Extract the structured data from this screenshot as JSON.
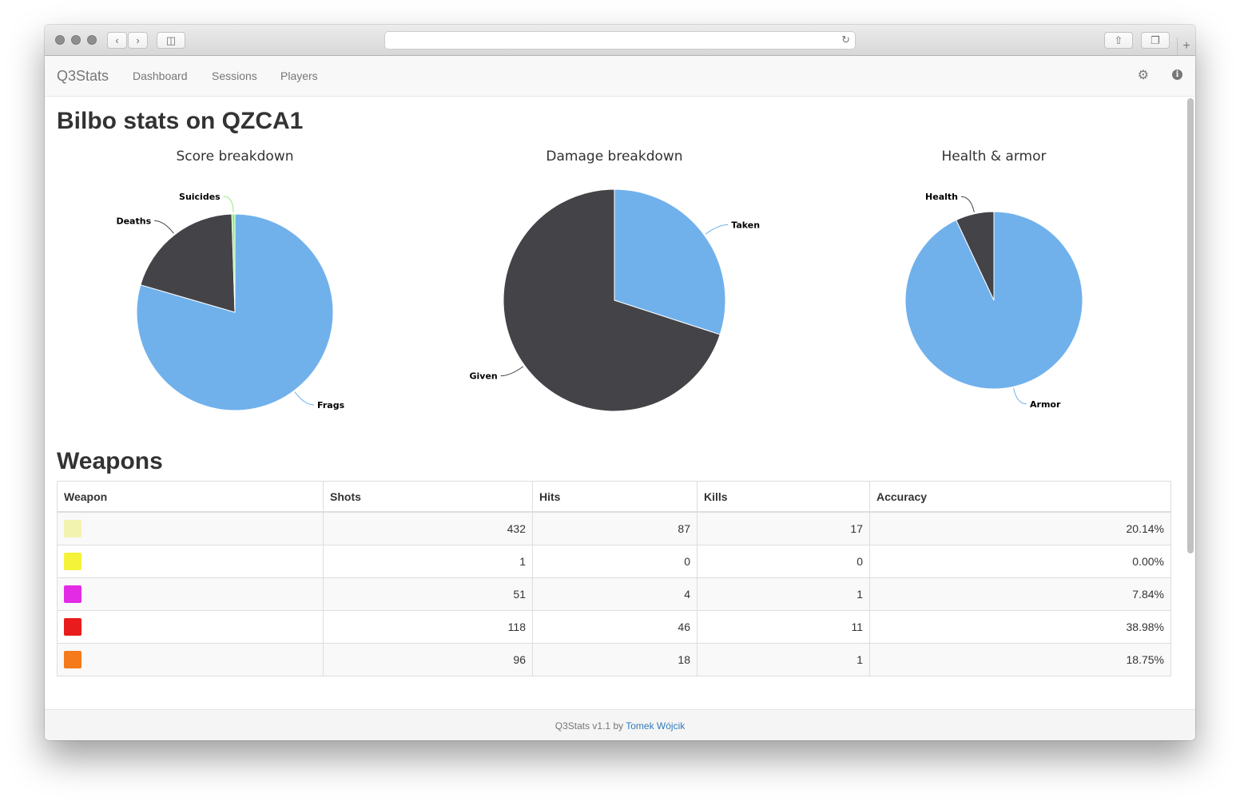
{
  "navbar": {
    "brand": "Q3Stats",
    "links": [
      "Dashboard",
      "Sessions",
      "Players"
    ],
    "settings_icon": "gear-icon",
    "info_icon": "info-icon"
  },
  "page": {
    "title": "Bilbo stats on QZCA1"
  },
  "colors": {
    "blue": "#70b1ec",
    "dark": "#434348",
    "lime": "#90ed7d"
  },
  "chart_data": [
    {
      "type": "pie",
      "title": "Score breakdown",
      "series": [
        {
          "values": [
            {
              "name": "Frags",
              "value": 79.5,
              "color": "#70b1ec"
            },
            {
              "name": "Deaths",
              "value": 20.0,
              "color": "#434348"
            },
            {
              "name": "Suicides",
              "value": 0.5,
              "color": "#90ed7d"
            }
          ]
        }
      ]
    },
    {
      "type": "pie",
      "title": "Damage breakdown",
      "series": [
        {
          "values": [
            {
              "name": "Taken",
              "value": 30,
              "color": "#70b1ec"
            },
            {
              "name": "Given",
              "value": 70,
              "color": "#434348"
            }
          ]
        }
      ]
    },
    {
      "type": "pie",
      "title": "Health & armor",
      "series": [
        {
          "values": [
            {
              "name": "Armor",
              "value": 93,
              "color": "#70b1ec"
            },
            {
              "name": "Health",
              "value": 7,
              "color": "#434348"
            }
          ]
        }
      ]
    }
  ],
  "weapons": {
    "title": "Weapons",
    "columns": [
      "Weapon",
      "Shots",
      "Hits",
      "Kills",
      "Accuracy"
    ],
    "rows": [
      {
        "icon": "lightning-gun-icon",
        "icon_color": "#f3f3b0",
        "shots": "432",
        "hits": "87",
        "kills": "17",
        "accuracy": "20.14%"
      },
      {
        "icon": "rocket-launcher-icon",
        "icon_color": "#f5f23a",
        "shots": "1",
        "hits": "0",
        "kills": "0",
        "accuracy": "0.00%"
      },
      {
        "icon": "plasma-gun-icon",
        "icon_color": "#e32be6",
        "shots": "51",
        "hits": "4",
        "kills": "1",
        "accuracy": "7.84%"
      },
      {
        "icon": "gauntlet-icon",
        "icon_color": "#e81c1c",
        "shots": "118",
        "hits": "46",
        "kills": "11",
        "accuracy": "38.98%"
      },
      {
        "icon": "machine-gun-icon",
        "icon_color": "#f47a1c",
        "shots": "96",
        "hits": "18",
        "kills": "1",
        "accuracy": "18.75%"
      }
    ]
  },
  "footer": {
    "text": "Q3Stats v1.1 by ",
    "author": "Tomek Wójcik"
  }
}
